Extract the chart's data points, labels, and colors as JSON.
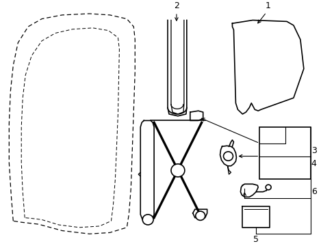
{
  "background_color": "#ffffff",
  "line_color": "#000000",
  "label_color": "#000000",
  "lw_main": 1.2,
  "lw_dashed": 0.9,
  "label_fontsize": 9
}
